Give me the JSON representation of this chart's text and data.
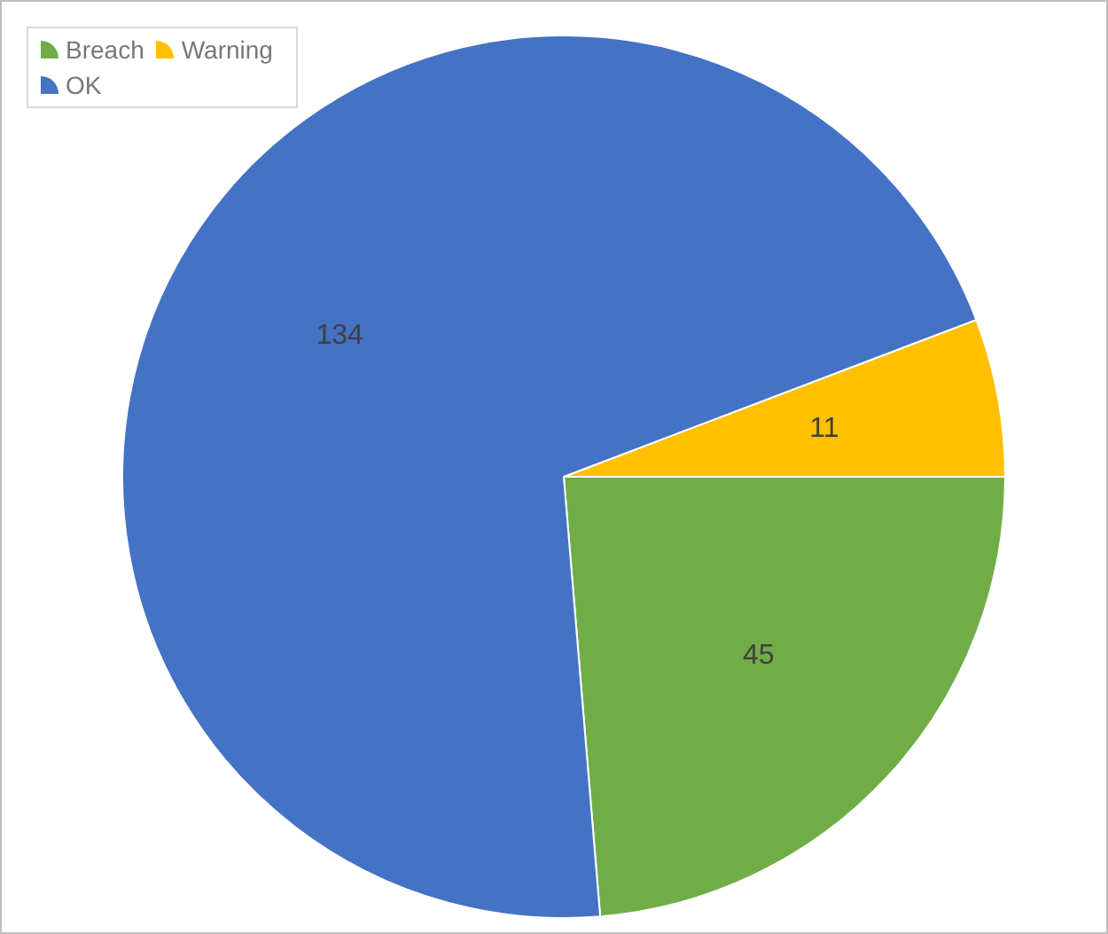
{
  "chart_data": {
    "type": "pie",
    "categories": [
      "Breach",
      "Warning",
      "OK"
    ],
    "values": [
      45,
      11,
      134
    ],
    "colors": [
      "#70ad47",
      "#ffc000",
      "#4472c4"
    ],
    "data_labels": true,
    "legend": "top left"
  }
}
